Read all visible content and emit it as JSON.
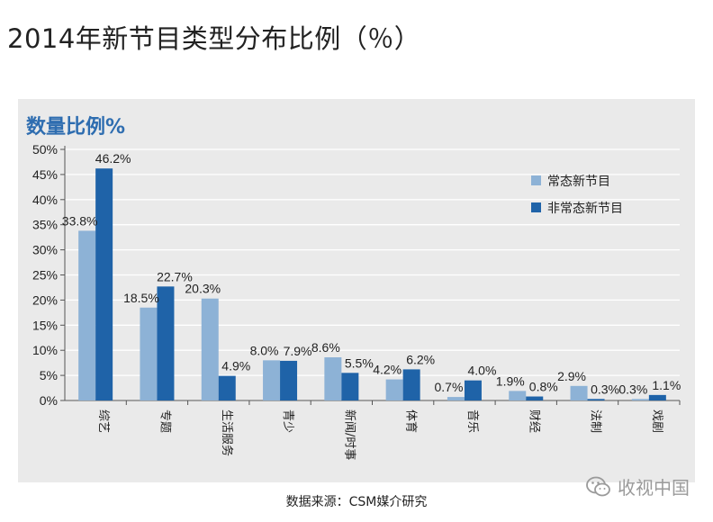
{
  "title": "2014年新节目类型分布比例（％）",
  "source": "数据来源：CSM媒介研究",
  "watermark": {
    "text": "收视中国",
    "icon": "wechat-icon"
  },
  "colors": {
    "series1": "#8db2d6",
    "series2": "#1f63a8",
    "panel": "#eaeaea",
    "heading": "#2e6db0"
  },
  "chart_data": {
    "type": "bar",
    "subtitle": "数量比例%",
    "categories": [
      "综艺",
      "专题",
      "生活服务",
      "青少",
      "新闻/时事",
      "体育",
      "音乐",
      "财经",
      "法制",
      "戏剧"
    ],
    "series": [
      {
        "name": "常态新节目",
        "values": [
          33.8,
          18.5,
          20.3,
          8.0,
          8.6,
          4.2,
          0.7,
          1.9,
          2.9,
          0.3
        ],
        "labels": [
          "33.8%",
          "18.5%",
          "20.3%",
          "8.0%",
          "8.6%",
          "4.2%",
          "0.7%",
          "1.9%",
          "2.9%",
          "0.3%"
        ]
      },
      {
        "name": "非常态新节目",
        "values": [
          46.2,
          22.7,
          4.9,
          7.9,
          5.5,
          6.2,
          4.0,
          0.8,
          0.3,
          1.1
        ],
        "labels": [
          "46.2%",
          "22.7%",
          "4.9%",
          "7.9%",
          "5.5%",
          "6.2%",
          "4.0%",
          "0.8%",
          "0.3%",
          "1.1%"
        ]
      }
    ],
    "ylim": [
      0,
      50
    ],
    "yticks": [
      0,
      5,
      10,
      15,
      20,
      25,
      30,
      35,
      40,
      45,
      50
    ],
    "ytick_labels": [
      "0%",
      "5%",
      "10%",
      "15%",
      "20%",
      "25%",
      "30%",
      "35%",
      "40%",
      "45%",
      "50%"
    ],
    "legend_position": "top-right",
    "xlabel": "",
    "ylabel": ""
  }
}
